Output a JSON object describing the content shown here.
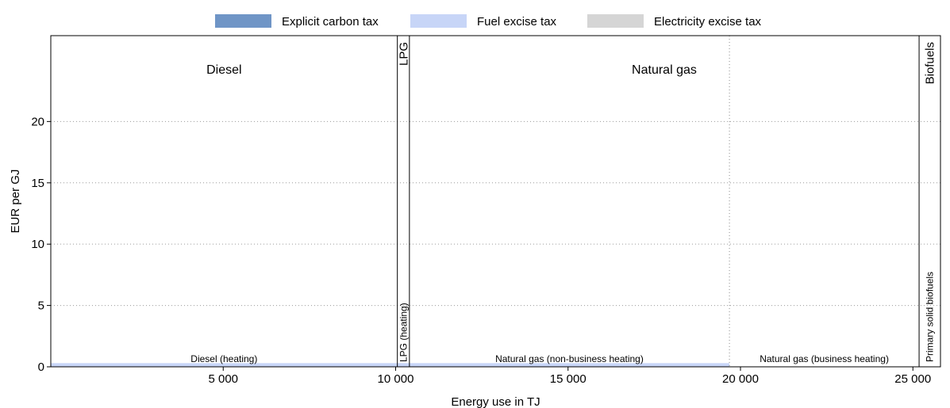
{
  "chart_data": {
    "type": "area",
    "title": "",
    "xlabel": "Energy use in TJ",
    "ylabel": "EUR per GJ",
    "xlim": [
      0,
      25800
    ],
    "ylim": [
      0,
      27
    ],
    "xticks": [
      5000,
      10000,
      15000,
      20000,
      25000
    ],
    "xtick_labels": [
      "5 000",
      "10 000",
      "15 000",
      "20 000",
      "25 000"
    ],
    "yticks": [
      0,
      5,
      10,
      15,
      20
    ],
    "ytick_labels": [
      "0",
      "5",
      "10",
      "15",
      "20"
    ],
    "grid": "horizontal-dotted",
    "legend": {
      "position": "top",
      "items": [
        {
          "name": "Explicit carbon tax",
          "color": "#6f95c6"
        },
        {
          "name": "Fuel excise tax",
          "color": "#c7d5f7"
        },
        {
          "name": "Electricity excise tax",
          "color": "#d5d5d5"
        }
      ]
    },
    "fuel_groups": [
      {
        "label": "Diesel",
        "x_start": 0,
        "x_end": 10050,
        "label_orientation": "horizontal"
      },
      {
        "label": "LPG",
        "x_start": 10050,
        "x_end": 10400,
        "label_orientation": "vertical"
      },
      {
        "label": "Natural gas",
        "x_start": 10400,
        "x_end": 25180,
        "label_orientation": "horizontal"
      },
      {
        "label": "Biofuels",
        "x_start": 25180,
        "x_end": 25800,
        "label_orientation": "vertical"
      }
    ],
    "segments": [
      {
        "label": "Diesel (heating)",
        "x_start": 0,
        "x_end": 10050,
        "fuel_excise": 0.3,
        "carbon_tax": 0,
        "electricity_excise": 0,
        "label_orientation": "horizontal"
      },
      {
        "label": "LPG (heating)",
        "x_start": 10050,
        "x_end": 10400,
        "fuel_excise": 0.3,
        "carbon_tax": 0,
        "electricity_excise": 0,
        "label_orientation": "vertical"
      },
      {
        "label": "Natural gas (non-business heating)",
        "x_start": 10400,
        "x_end": 19680,
        "fuel_excise": 0.3,
        "carbon_tax": 0,
        "electricity_excise": 0,
        "label_orientation": "horizontal"
      },
      {
        "label": "Natural gas (business heating)",
        "x_start": 19680,
        "x_end": 25180,
        "fuel_excise": 0,
        "carbon_tax": 0,
        "electricity_excise": 0,
        "label_orientation": "horizontal"
      },
      {
        "label": "Primary solid biofuels",
        "x_start": 25180,
        "x_end": 25800,
        "fuel_excise": 0,
        "carbon_tax": 0,
        "electricity_excise": 0,
        "label_orientation": "vertical"
      }
    ]
  }
}
